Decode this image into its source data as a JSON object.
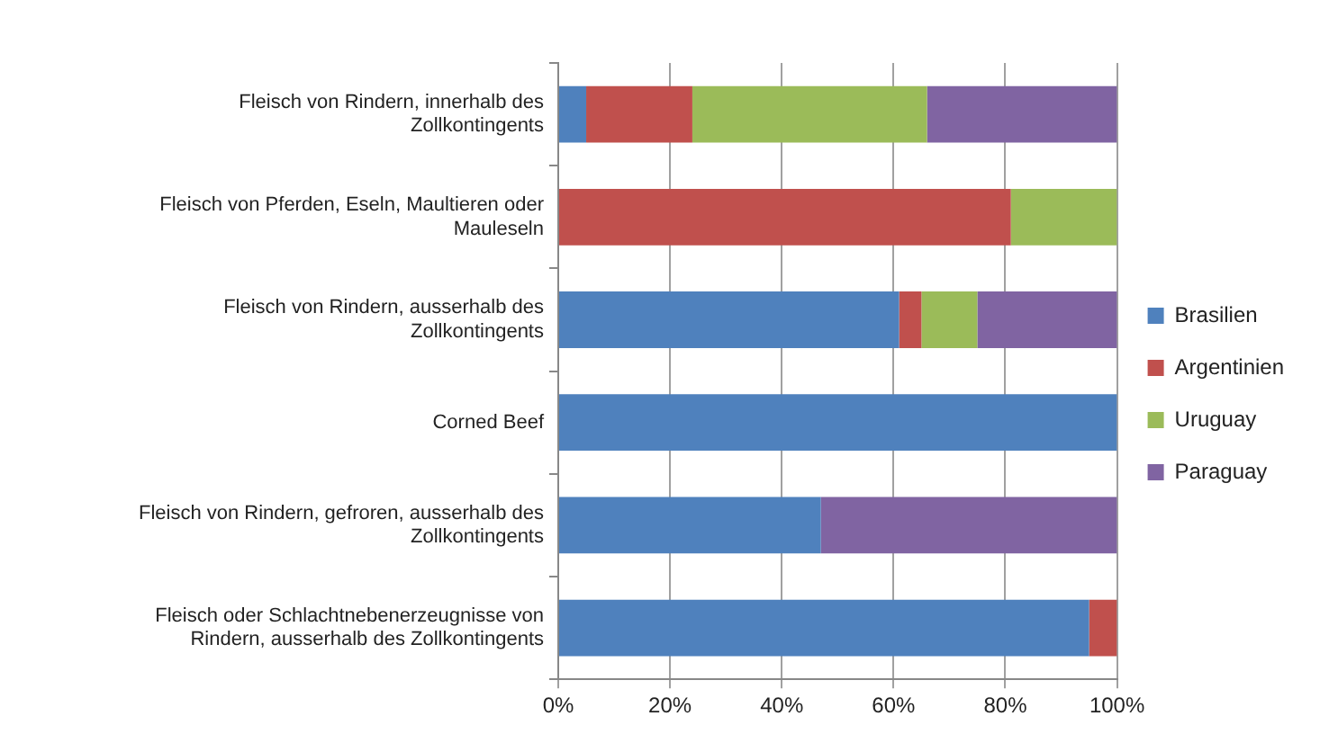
{
  "chart_data": {
    "type": "bar",
    "orientation": "horizontal",
    "stacked": true,
    "categories": [
      "Fleisch von Rindern, innerhalb des Zollkontingents",
      "Fleisch von Pferden, Eseln, Maultieren oder Mauleseln",
      "Fleisch von Rindern, ausserhalb des Zollkontingents",
      "Corned Beef",
      "Fleisch von Rindern, gefroren, ausserhalb des Zollkontingents",
      "Fleisch oder Schlachtnebenerzeugnisse von Rindern, ausserhalb des Zollkontingents"
    ],
    "series": [
      {
        "name": "Brasilien",
        "color": "#4f81bd",
        "values": [
          5,
          0,
          61,
          100,
          47,
          95
        ]
      },
      {
        "name": "Argentinien",
        "color": "#c0504d",
        "values": [
          19,
          81,
          4,
          0,
          0,
          5
        ]
      },
      {
        "name": "Uruguay",
        "color": "#9bbb59",
        "values": [
          42,
          19,
          10,
          0,
          0,
          0
        ]
      },
      {
        "name": "Paraguay",
        "color": "#8064a2",
        "values": [
          34,
          0,
          25,
          0,
          53,
          0
        ]
      }
    ],
    "xlim": [
      0,
      100
    ],
    "xticks": [
      {
        "value": 0,
        "label": "0%"
      },
      {
        "value": 20,
        "label": "20%"
      },
      {
        "value": 40,
        "label": "40%"
      },
      {
        "value": 60,
        "label": "60%"
      },
      {
        "value": 80,
        "label": "80%"
      },
      {
        "value": 100,
        "label": "100%"
      }
    ],
    "grid": "x",
    "legend": "right"
  }
}
